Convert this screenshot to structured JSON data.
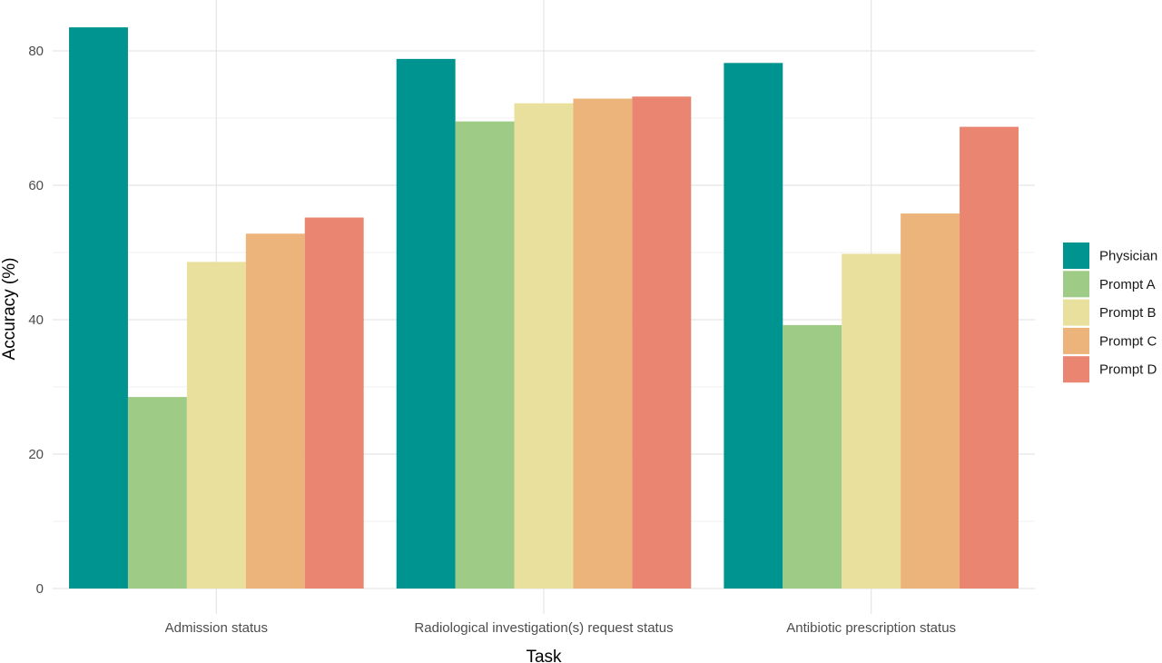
{
  "chart_data": {
    "type": "bar",
    "title": "",
    "xlabel": "Task",
    "ylabel": "Accuracy (%)",
    "ylim": [
      0,
      85
    ],
    "yticks": [
      0,
      20,
      40,
      60,
      80
    ],
    "grid": true,
    "legend_position": "right",
    "categories": [
      "Admission status",
      "Radiological investigation(s) request status",
      "Antibiotic prescription status"
    ],
    "series": [
      {
        "name": "Physician",
        "color": "#009490",
        "values": [
          83.5,
          78.8,
          78.2
        ]
      },
      {
        "name": "Prompt A",
        "color": "#9ECB86",
        "values": [
          28.5,
          69.5,
          39.2
        ]
      },
      {
        "name": "Prompt B",
        "color": "#E8E09C",
        "values": [
          48.6,
          72.2,
          49.8
        ]
      },
      {
        "name": "Prompt C",
        "color": "#ECB37B",
        "values": [
          52.8,
          72.9,
          55.8
        ]
      },
      {
        "name": "Prompt D",
        "color": "#E98571",
        "values": [
          55.2,
          73.2,
          68.7
        ]
      }
    ]
  }
}
